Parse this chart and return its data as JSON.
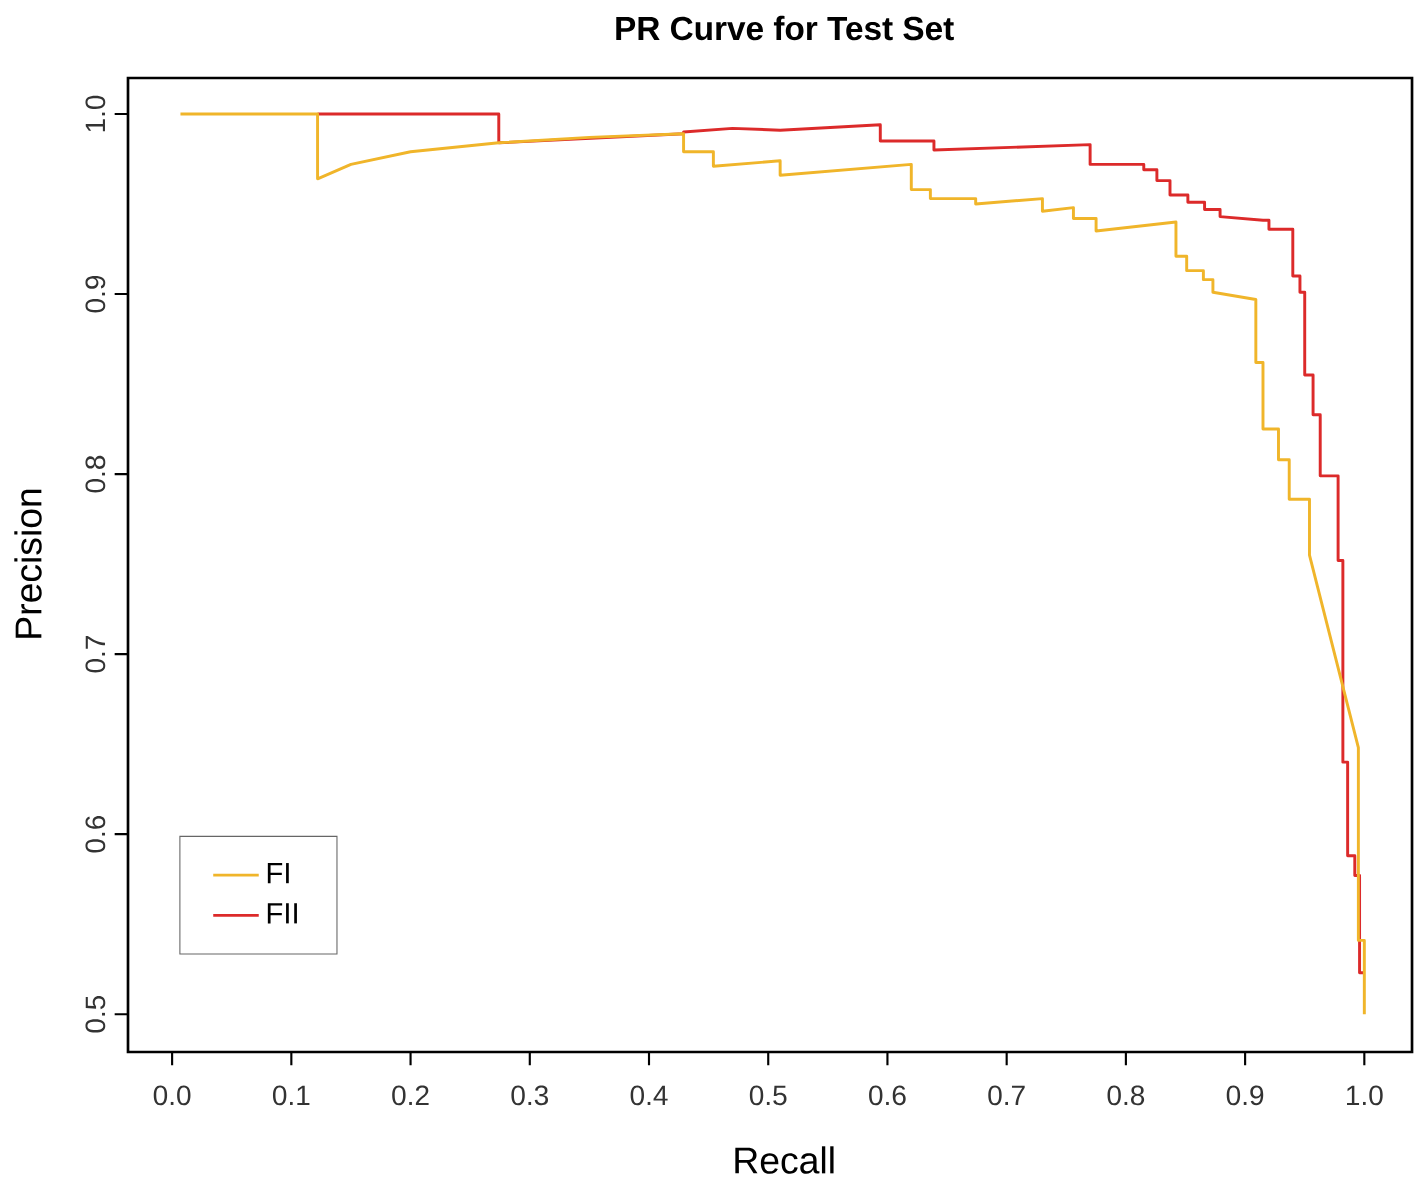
{
  "chart_data": {
    "type": "line",
    "title": "PR Curve for Test Set",
    "xlabel": "Recall",
    "ylabel": "Precision",
    "xlim": [
      -0.037,
      1.04
    ],
    "ylim": [
      0.479,
      1.02
    ],
    "xticks": [
      {
        "value": 0,
        "label": "0.0"
      },
      0.1,
      0.2,
      0.3,
      0.4,
      0.5,
      0.6,
      0.7,
      0.8,
      0.9,
      {
        "value": 1,
        "label": "1.0"
      }
    ],
    "yticks": [
      0.5,
      0.6,
      0.7,
      0.8,
      0.9,
      {
        "value": 1,
        "label": "1.0"
      }
    ],
    "grid": false,
    "legend": "bottom left",
    "series": [
      {
        "name": "FI",
        "color": "#f0b52a",
        "x": [
          0.007,
          0.122,
          0.122,
          0.15,
          0.2,
          0.274,
          0.35,
          0.429,
          0.429,
          0.454,
          0.454,
          0.51,
          0.51,
          0.62,
          0.62,
          0.636,
          0.636,
          0.674,
          0.674,
          0.73,
          0.73,
          0.756,
          0.756,
          0.775,
          0.775,
          0.842,
          0.842,
          0.851,
          0.851,
          0.865,
          0.865,
          0.873,
          0.873,
          0.909,
          0.909,
          0.915,
          0.915,
          0.928,
          0.928,
          0.937,
          0.937,
          0.954,
          0.954,
          0.995,
          0.995,
          1.0,
          1.0
        ],
        "values": [
          1.0,
          1.0,
          0.964,
          0.972,
          0.979,
          0.984,
          0.987,
          0.989,
          0.979,
          0.979,
          0.971,
          0.974,
          0.966,
          0.972,
          0.958,
          0.958,
          0.953,
          0.953,
          0.95,
          0.953,
          0.946,
          0.948,
          0.942,
          0.942,
          0.935,
          0.94,
          0.921,
          0.921,
          0.913,
          0.913,
          0.908,
          0.908,
          0.901,
          0.897,
          0.862,
          0.862,
          0.825,
          0.825,
          0.808,
          0.808,
          0.786,
          0.786,
          0.755,
          0.648,
          0.541,
          0.541,
          0.5
        ]
      },
      {
        "name": "FII",
        "color": "#dc2a2a",
        "x": [
          0.122,
          0.274,
          0.274,
          0.35,
          0.429,
          0.429,
          0.47,
          0.51,
          0.594,
          0.594,
          0.639,
          0.639,
          0.77,
          0.77,
          0.815,
          0.815,
          0.826,
          0.826,
          0.837,
          0.837,
          0.852,
          0.852,
          0.866,
          0.866,
          0.879,
          0.879,
          0.915,
          0.92,
          0.92,
          0.94,
          0.94,
          0.946,
          0.946,
          0.95,
          0.95,
          0.957,
          0.957,
          0.963,
          0.963,
          0.978,
          0.978,
          0.982,
          0.982,
          0.986,
          0.986,
          0.992,
          0.992,
          0.996,
          0.996,
          1.0
        ],
        "values": [
          1.0,
          1.0,
          0.984,
          null,
          0.989,
          0.99,
          0.992,
          0.991,
          0.994,
          0.985,
          0.985,
          0.98,
          0.983,
          0.972,
          0.972,
          0.969,
          0.969,
          0.963,
          0.963,
          0.955,
          0.955,
          0.951,
          0.951,
          0.947,
          0.947,
          0.943,
          0.941,
          0.941,
          0.936,
          0.936,
          0.91,
          0.91,
          0.901,
          0.901,
          0.855,
          0.855,
          0.833,
          0.833,
          0.799,
          0.799,
          0.752,
          0.752,
          0.64,
          0.64,
          0.588,
          0.588,
          0.577,
          0.577,
          0.523,
          0.523
        ]
      }
    ]
  }
}
